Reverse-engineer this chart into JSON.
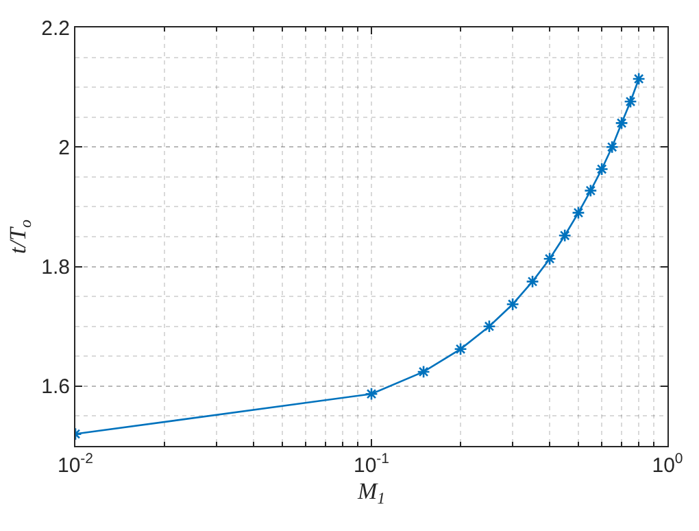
{
  "chart_data": {
    "type": "line",
    "xlabel": "M$_{1}$",
    "ylabel": "t/T$_{o}$",
    "log": "x",
    "grid": true,
    "marker": "cross",
    "line_style": "solid",
    "x": [
      0.01,
      0.1,
      0.15,
      0.2,
      0.25,
      0.3,
      0.35,
      0.4,
      0.45,
      0.5,
      0.55,
      0.6,
      0.65,
      0.7,
      0.75,
      0.8
    ],
    "series": [
      {
        "color": "#0072bd",
        "values": [
          1.52,
          1.587,
          1.624,
          1.662,
          1.7,
          1.737,
          1.775,
          1.813,
          1.852,
          1.89,
          1.927,
          1.963,
          2.0,
          2.04,
          2.076,
          2.114
        ]
      }
    ],
    "xlim": [
      0.01,
      1
    ],
    "ylim": [
      1.5,
      2.2
    ],
    "xticks": [
      {
        "value": 0.01,
        "label": "10$^{-2}$"
      },
      {
        "value": 0.1,
        "label": "10$^{-1}$"
      },
      {
        "value": 1,
        "label": "10$^{0}$"
      }
    ],
    "yticks": [
      1.6,
      1.8,
      2,
      2.2
    ]
  }
}
